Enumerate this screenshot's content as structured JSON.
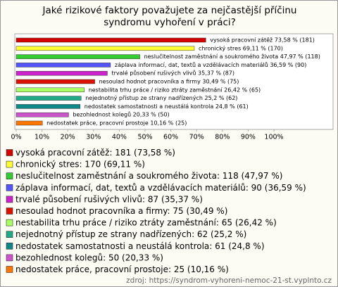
{
  "chart_data": {
    "type": "bar",
    "title": "Jaké rizikové faktory považujete za nejčastější příčinu syndromu vyhoření v práci?",
    "categories": [
      "vysoká pracovní zátěž",
      "chronický stres",
      "neslučitelnost zaměstnání a soukromého života",
      "záplava informací, dat, textů a vzdělávacích materiálů",
      "trvalé působení rušivých vlivů",
      "nesoulad hodnot pracovníka a firmy",
      "nestabilita trhu práce / riziko ztráty zaměstnání",
      "nejednotný přístup ze strany nadřízených",
      "nedostatek samostatnosti a neustálá kontrola",
      "bezohlednost kolegů",
      "nedostatek práce, pracovní prostoje"
    ],
    "values": [
      73.58,
      69.11,
      47.97,
      36.59,
      35.37,
      30.49,
      26.42,
      25.2,
      24.8,
      20.33,
      10.16
    ],
    "value_labels": [
      "vysoká pracovní zátěž 73,58 % (181)",
      "chronický stres 69,11 % (170)",
      "neslučitelnost zaměstnání a soukromého života 47,97 % (118)",
      "záplava informací, dat, textů a vzdělávacích materiálů 36,59 % (90)",
      "trvalé působení rušivých vlivů 35,37 % (87)",
      "nesoulad hodnot pracovníka a firmy 30,49 % (75)",
      "nestabilita trhu práce / riziko ztráty zaměstnání 26,42 % (65)",
      "nejednotný přístup ze strany nadřízených 25,2 % (62)",
      "nedostatek samostatnosti a neustálá kontrola 24,8 % (61)",
      "bezohlednost kolegů 20,33 % (50)",
      "nedostatek práce, pracovní prostoje 10,16 % (25)"
    ],
    "legend_labels": [
      "vysoká pracovní zátěž: 181 (73,58 %)",
      "chronický stres: 170 (69,11 %)",
      "neslučitelnost zaměstnání a soukromého života: 118 (47,97 %)",
      "záplava informací, dat, textů a vzdělávacích materiálů: 90 (36,59 %)",
      "trvalé působení rušivých vlivů: 87 (35,37 %)",
      "nesoulad hodnot pracovníka a firmy: 75 (30,49 %)",
      "nestabilita trhu práce / riziko ztráty zaměstnání: 65 (26,42 %)",
      "nejednotný přístup ze strany nadřízených: 62 (25,2 %)",
      "nedostatek samostatnosti a neustálá kontrola: 61 (24,8 %)",
      "bezohlednost kolegů: 50 (20,33 %)",
      "nedostatek práce, pracovní prostoje: 25 (10,16 %)"
    ],
    "colors": [
      "#d40000",
      "#ffff33",
      "#33cc33",
      "#5555ff",
      "#cc22cc",
      "#dd1100",
      "#aaff66",
      "#22aa88",
      "#118888",
      "#cc55cc",
      "#ff7700"
    ],
    "xlim": [
      0,
      100
    ],
    "xticks": [
      {
        "value": 0,
        "label": "0%"
      },
      {
        "value": 10,
        "label": "10%"
      },
      {
        "value": 20,
        "label": "20%"
      },
      {
        "value": 30,
        "label": "30%"
      },
      {
        "value": 40,
        "label": "40%"
      },
      {
        "value": 50,
        "label": "50%"
      },
      {
        "value": 60,
        "label": "60%"
      },
      {
        "value": 70,
        "label": "70%"
      },
      {
        "value": 80,
        "label": "80%"
      },
      {
        "value": 90,
        "label": "90%"
      },
      {
        "value": 100,
        "label": "100%"
      }
    ],
    "source": "zdroj: https://syndrom-vyhoreni-nemoc-21-st.vyplnto.cz"
  }
}
